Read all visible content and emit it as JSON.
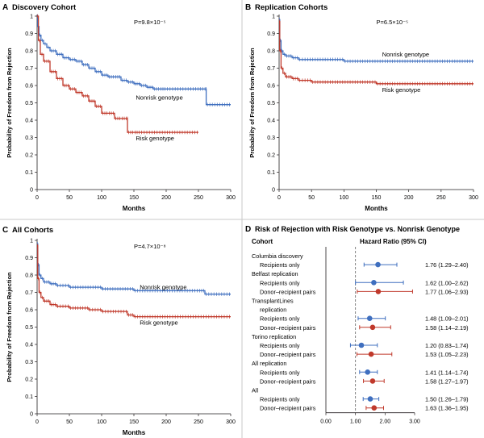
{
  "colors": {
    "nonrisk": "#3f6fbf",
    "risk": "#c0392b",
    "axis": "#231f20",
    "ref_line": "#666666"
  },
  "chart_data": [
    {
      "type": "line",
      "panel_letter": "A",
      "title": "Discovery Cohort",
      "pvalue": "P=9.8×10⁻⁵",
      "xlabel": "Months",
      "ylabel": "Probability of Freedom from Rejection",
      "xlim": [
        0,
        300
      ],
      "ylim": [
        0,
        1.0
      ],
      "xticks": [
        0,
        50,
        100,
        150,
        200,
        250,
        300
      ],
      "yticks": [
        0,
        0.1,
        0.2,
        0.3,
        0.4,
        0.5,
        0.6,
        0.7,
        0.8,
        0.9,
        1.0
      ],
      "series": [
        {
          "name": "Nonrisk genotype",
          "color_key": "nonrisk",
          "x": [
            0,
            1,
            3,
            6,
            10,
            15,
            20,
            30,
            40,
            50,
            60,
            70,
            80,
            90,
            100,
            110,
            120,
            130,
            140,
            150,
            160,
            170,
            180,
            190,
            200,
            220,
            240,
            262,
            262,
            300
          ],
          "y": [
            1.0,
            0.94,
            0.89,
            0.86,
            0.84,
            0.82,
            0.8,
            0.78,
            0.76,
            0.75,
            0.74,
            0.72,
            0.7,
            0.68,
            0.66,
            0.65,
            0.65,
            0.63,
            0.62,
            0.61,
            0.6,
            0.59,
            0.58,
            0.58,
            0.58,
            0.58,
            0.58,
            0.58,
            0.49,
            0.49
          ]
        },
        {
          "name": "Risk genotype",
          "color_key": "risk",
          "x": [
            0,
            2,
            5,
            10,
            20,
            30,
            40,
            50,
            60,
            70,
            80,
            90,
            100,
            110,
            120,
            130,
            140,
            140,
            150,
            160,
            200,
            250
          ],
          "y": [
            1.0,
            0.86,
            0.78,
            0.74,
            0.68,
            0.64,
            0.6,
            0.58,
            0.56,
            0.54,
            0.51,
            0.48,
            0.44,
            0.44,
            0.41,
            0.41,
            0.41,
            0.33,
            0.33,
            0.33,
            0.33,
            0.33
          ]
        }
      ]
    },
    {
      "type": "line",
      "panel_letter": "B",
      "title": "Replication Cohorts",
      "pvalue": "P=6.5×10⁻⁵",
      "xlabel": "Months",
      "ylabel": "Probability of Freedom from Rejection",
      "xlim": [
        0,
        300
      ],
      "ylim": [
        0,
        1.0
      ],
      "xticks": [
        0,
        50,
        100,
        150,
        200,
        250,
        300
      ],
      "yticks": [
        0,
        0.1,
        0.2,
        0.3,
        0.4,
        0.5,
        0.6,
        0.7,
        0.8,
        0.9,
        1.0
      ],
      "series": [
        {
          "name": "Nonrisk genotype",
          "color_key": "nonrisk",
          "x": [
            0,
            1,
            3,
            6,
            10,
            20,
            30,
            50,
            100,
            150,
            200,
            250,
            300
          ],
          "y": [
            0.98,
            0.86,
            0.8,
            0.78,
            0.77,
            0.76,
            0.75,
            0.75,
            0.74,
            0.74,
            0.74,
            0.74,
            0.74
          ]
        },
        {
          "name": "Risk genotype",
          "color_key": "risk",
          "x": [
            0,
            1,
            3,
            6,
            10,
            20,
            30,
            50,
            100,
            150,
            200,
            250,
            300
          ],
          "y": [
            0.97,
            0.8,
            0.7,
            0.67,
            0.65,
            0.64,
            0.63,
            0.62,
            0.62,
            0.61,
            0.61,
            0.61,
            0.61
          ]
        }
      ]
    },
    {
      "type": "line",
      "panel_letter": "C",
      "title": "All Cohorts",
      "pvalue": "P=4.7×10⁻⁸",
      "xlabel": "Months",
      "ylabel": "Probability of Freedom from Rejection",
      "xlim": [
        0,
        300
      ],
      "ylim": [
        0,
        1.0
      ],
      "xticks": [
        0,
        50,
        100,
        150,
        200,
        250,
        300
      ],
      "yticks": [
        0,
        0.1,
        0.2,
        0.3,
        0.4,
        0.5,
        0.6,
        0.7,
        0.8,
        0.9,
        1.0
      ],
      "series": [
        {
          "name": "Nonrisk genotype",
          "color_key": "nonrisk",
          "x": [
            0,
            1,
            3,
            6,
            10,
            20,
            30,
            50,
            100,
            150,
            200,
            250,
            260,
            300
          ],
          "y": [
            0.98,
            0.86,
            0.8,
            0.78,
            0.76,
            0.75,
            0.74,
            0.73,
            0.72,
            0.71,
            0.71,
            0.71,
            0.69,
            0.69
          ]
        },
        {
          "name": "Risk genotype",
          "color_key": "risk",
          "x": [
            0,
            1,
            3,
            6,
            10,
            20,
            30,
            50,
            80,
            100,
            140,
            150,
            200,
            300
          ],
          "y": [
            0.97,
            0.78,
            0.7,
            0.67,
            0.65,
            0.63,
            0.62,
            0.61,
            0.6,
            0.59,
            0.57,
            0.56,
            0.56,
            0.56
          ]
        }
      ]
    },
    {
      "type": "forest",
      "panel_letter": "D",
      "title": "Risk of Rejection with Risk Genotype vs. Nonrisk Genotype",
      "col_cohort": "Cohort",
      "col_hr": "Hazard Ratio (95% CI)",
      "xlim": [
        0,
        3.0
      ],
      "xticks": [
        "0.00",
        "1.00",
        "2.00",
        "3.00"
      ],
      "ref_value": 1.0,
      "rows": [
        {
          "label": "Columbia discovery",
          "indent": false
        },
        {
          "label": "Recipients only",
          "indent": true,
          "hr": 1.76,
          "lo": 1.29,
          "hi": 2.4,
          "ci_text": "1.76 (1.29–2.40)",
          "color_key": "nonrisk"
        },
        {
          "label": "Belfast replication",
          "indent": false
        },
        {
          "label": "Recipients only",
          "indent": true,
          "hr": 1.62,
          "lo": 1.0,
          "hi": 2.62,
          "ci_text": "1.62 (1.00–2.62)",
          "color_key": "nonrisk"
        },
        {
          "label": "Donor–recipient pairs",
          "indent": true,
          "hr": 1.77,
          "lo": 1.06,
          "hi": 2.93,
          "ci_text": "1.77 (1.06–2.93)",
          "color_key": "risk"
        },
        {
          "label": "TransplantLines",
          "indent": false
        },
        {
          "label": "replication",
          "indent": true
        },
        {
          "label": "Recipients only",
          "indent": true,
          "hr": 1.48,
          "lo": 1.09,
          "hi": 2.01,
          "ci_text": "1.48 (1.09–2.01)",
          "color_key": "nonrisk"
        },
        {
          "label": "Donor–recipient pairs",
          "indent": true,
          "hr": 1.58,
          "lo": 1.14,
          "hi": 2.19,
          "ci_text": "1.58 (1.14–2.19)",
          "color_key": "risk"
        },
        {
          "label": "Torino replication",
          "indent": false
        },
        {
          "label": "Recipients only",
          "indent": true,
          "hr": 1.2,
          "lo": 0.83,
          "hi": 1.74,
          "ci_text": "1.20 (0.83–1.74)",
          "color_key": "nonrisk"
        },
        {
          "label": "Donor–recipient pairs",
          "indent": true,
          "hr": 1.53,
          "lo": 1.05,
          "hi": 2.23,
          "ci_text": "1.53 (1.05–2.23)",
          "color_key": "risk"
        },
        {
          "label": "All replication",
          "indent": false
        },
        {
          "label": "Recipients only",
          "indent": true,
          "hr": 1.41,
          "lo": 1.14,
          "hi": 1.74,
          "ci_text": "1.41 (1.14–1.74)",
          "color_key": "nonrisk"
        },
        {
          "label": "Donor–recipient pairs",
          "indent": true,
          "hr": 1.58,
          "lo": 1.27,
          "hi": 1.97,
          "ci_text": "1.58 (1.27–1.97)",
          "color_key": "risk"
        },
        {
          "label": "All",
          "indent": false
        },
        {
          "label": "Recipients only",
          "indent": true,
          "hr": 1.5,
          "lo": 1.26,
          "hi": 1.79,
          "ci_text": "1.50 (1.26–1.79)",
          "color_key": "nonrisk"
        },
        {
          "label": "Donor–recipient pairs",
          "indent": true,
          "hr": 1.63,
          "lo": 1.36,
          "hi": 1.95,
          "ci_text": "1.63 (1.36–1.95)",
          "color_key": "risk"
        }
      ]
    }
  ]
}
